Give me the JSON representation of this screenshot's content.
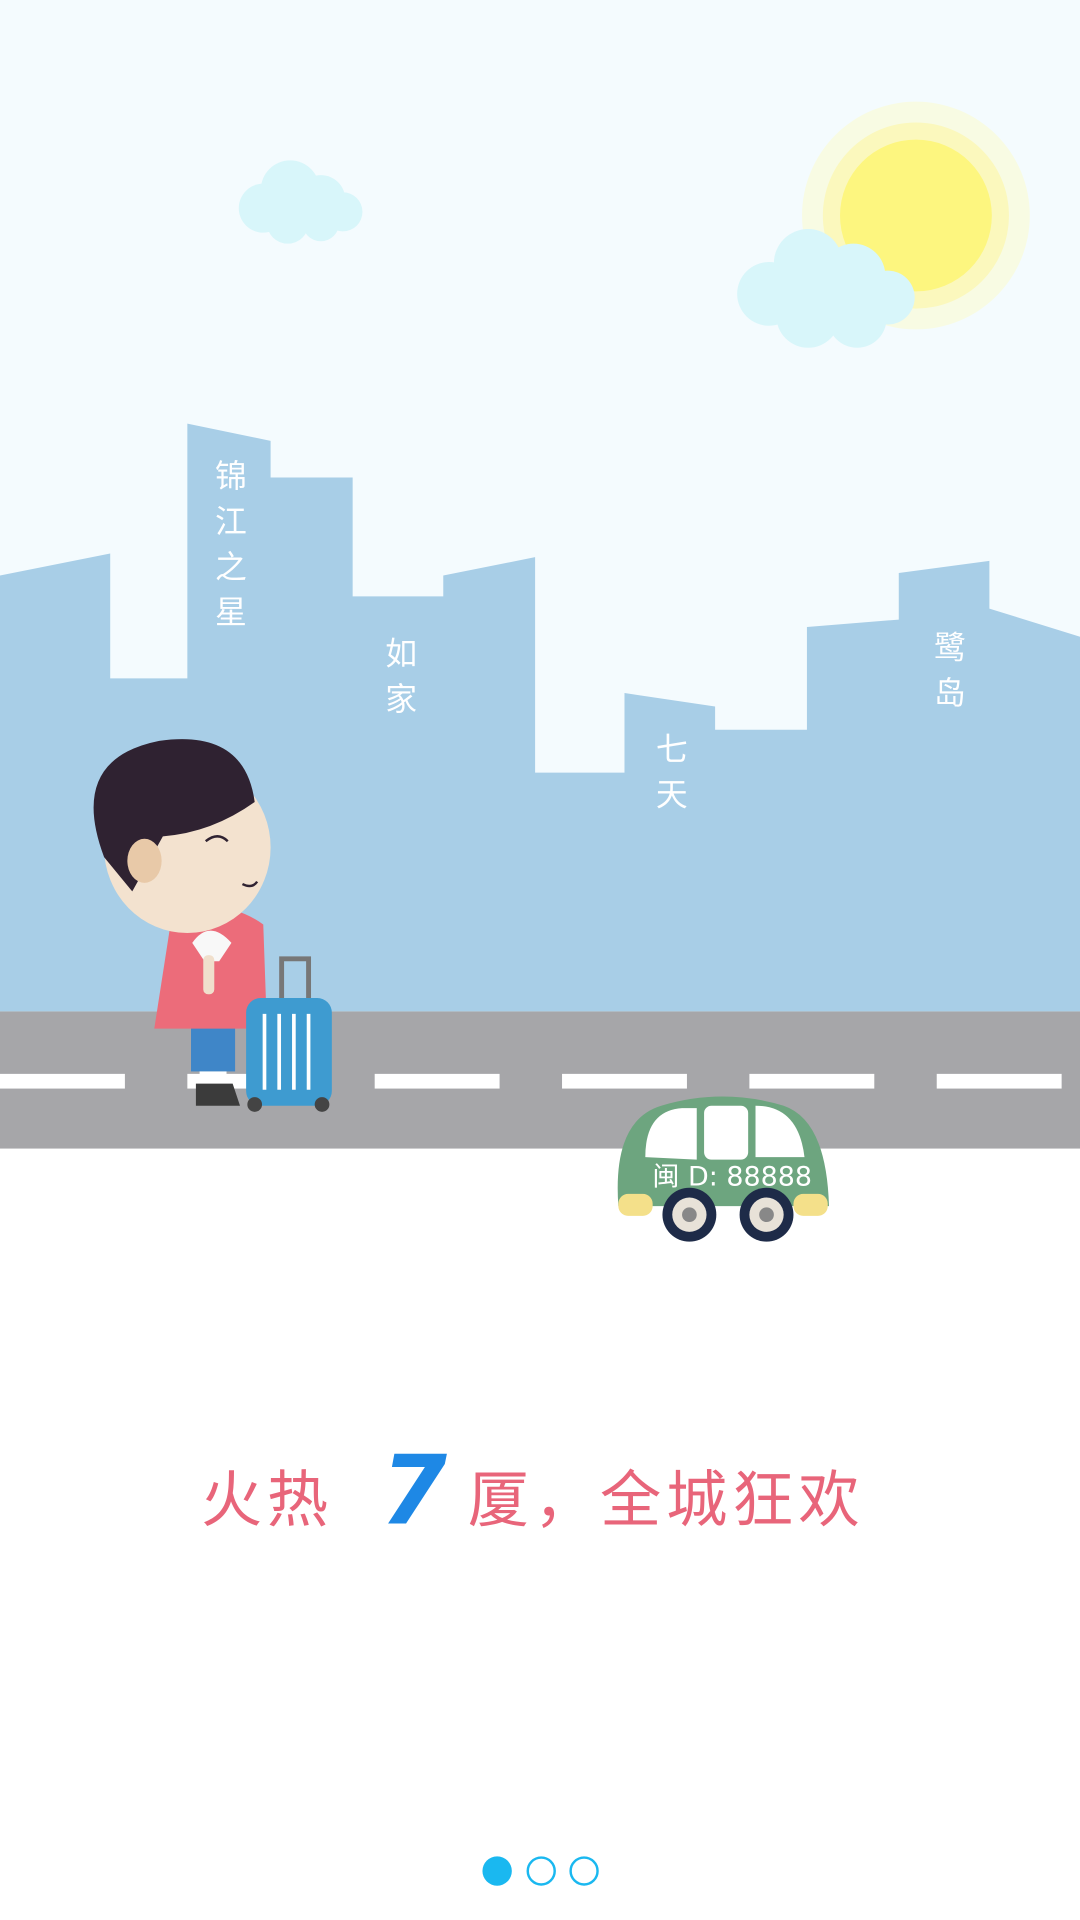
{
  "buildings": [
    {
      "label": "锦江之星"
    },
    {
      "label": "如家"
    },
    {
      "label": "七天"
    },
    {
      "label": "鹭岛"
    }
  ],
  "car": {
    "plate": "闽 D: 88888"
  },
  "headline": {
    "before": "火热",
    "number": "7",
    "after": "厦，全城狂欢"
  }
}
